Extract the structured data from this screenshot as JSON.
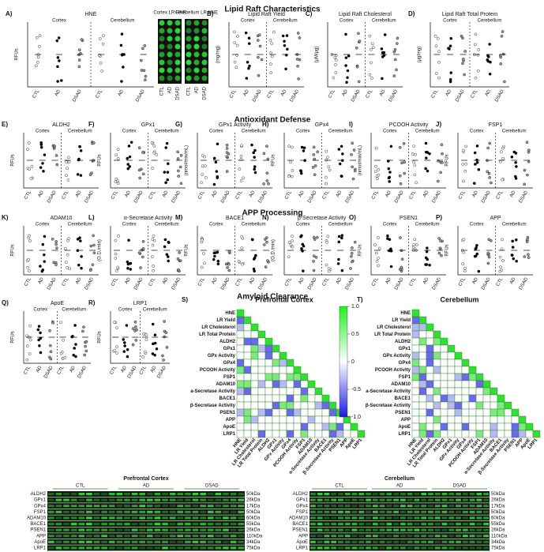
{
  "sections": [
    "Lipid Raft Characteristics",
    "Antioxidant Defense",
    "APP Processing",
    "Amyloid Clearance"
  ],
  "groups": [
    "Cortex",
    "Cerebellum"
  ],
  "x_labels": [
    "CTL",
    "AD",
    "DSAD"
  ],
  "panels": [
    {
      "label": "A)",
      "title": "HNE",
      "ylabel": "RFUs"
    },
    {
      "label": "B)",
      "title": "Lipid Raft Yield",
      "ylabel": "(mg/mg)"
    },
    {
      "label": "C)",
      "title": "Lipid Raft Cholesterol",
      "ylabel": "(µM/µg)"
    },
    {
      "label": "D)",
      "title": "Lipid Raft Total Protein",
      "ylabel": "(µg/mg)"
    },
    {
      "label": "E)",
      "title": "ALDH2",
      "ylabel": "RFUs"
    },
    {
      "label": "F)",
      "title": "GPx1",
      "ylabel": "RFUs"
    },
    {
      "label": "G)",
      "title": "GPx1 Activity",
      "ylabel": "(nmol/min/mL)"
    },
    {
      "label": "H)",
      "title": "GPx4",
      "ylabel": "RFUs"
    },
    {
      "label": "I)",
      "title": "PCOOH Activity",
      "ylabel": "(nmol/min/mL)"
    },
    {
      "label": "J)",
      "title": "FSP1",
      "ylabel": "RFUs"
    },
    {
      "label": "K)",
      "title": "ADAM10",
      "ylabel": "RFUs"
    },
    {
      "label": "L)",
      "title": "α-Secretase Activity",
      "ylabel": "(O.D./min)"
    },
    {
      "label": "M)",
      "title": "BACE1",
      "ylabel": "RFUs"
    },
    {
      "label": "N)",
      "title": "β-Secretase Activity",
      "ylabel": "(O.D./min)"
    },
    {
      "label": "O)",
      "title": "PSEN1",
      "ylabel": "RFUs"
    },
    {
      "label": "P)",
      "title": "APP",
      "ylabel": "RFUs"
    },
    {
      "label": "Q)",
      "title": "ApoE",
      "ylabel": "RFUs"
    },
    {
      "label": "R)",
      "title": "LRP1",
      "ylabel": "RFUs"
    }
  ],
  "insert": {
    "titles": [
      "Cortex LR HNE",
      "Cerebellum LR HNE"
    ]
  },
  "matrix": {
    "panel_labels": [
      "S)",
      "T)"
    ],
    "titles": [
      "Prefrontal Cortex",
      "Cerebellum"
    ],
    "variables": [
      "HNE",
      "LR Yield",
      "LR Cholesterol",
      "LR Total Protein",
      "ALDH2",
      "GPx1",
      "GPx Activity",
      "GPx4",
      "PCOOH Activity",
      "FSP1",
      "ADAM10",
      "a-Secretase Activity",
      "BACE1",
      "β-Secretase Activity",
      "PSEN1",
      "APP",
      "ApoE",
      "LRP1"
    ],
    "colorbar_ticks": [
      {
        "value": 1,
        "label": "1.0"
      },
      0.5,
      0,
      -0.5,
      {
        "value": -1,
        "label": "-1.0"
      }
    ]
  },
  "blots": [
    {
      "title": "Prefrontal Cortex",
      "rows": [
        [
          "ALDH2",
          "50kDa"
        ],
        [
          "GPx1",
          "26kDa"
        ],
        [
          "GPx4",
          "17kDa"
        ],
        [
          "FSP1",
          "50kDa"
        ],
        [
          "ADAM10",
          "60kDa"
        ],
        [
          "BACE1",
          "55kDa"
        ],
        [
          "PSEN1",
          "26kDa"
        ],
        [
          "APP",
          "110kDa"
        ],
        [
          "ApoE",
          "34kDa"
        ],
        [
          "LRP1",
          "75kDa"
        ]
      ]
    },
    {
      "title": "Cerebellum",
      "rows": [
        [
          "ALDH2",
          "50kDa"
        ],
        [
          "GPx1",
          "26kDa"
        ],
        [
          "GPx4",
          "17kDa"
        ],
        [
          "FSP1",
          "50kDa"
        ],
        [
          "ADAM10",
          "60kDa"
        ],
        [
          "BACE1",
          "55kDa"
        ],
        [
          "PSEN1",
          "26kDa"
        ],
        [
          "APP",
          "110kDa"
        ],
        [
          "ApoE",
          "34kDa"
        ],
        [
          "LRP1",
          "75kDa"
        ]
      ]
    }
  ]
}
